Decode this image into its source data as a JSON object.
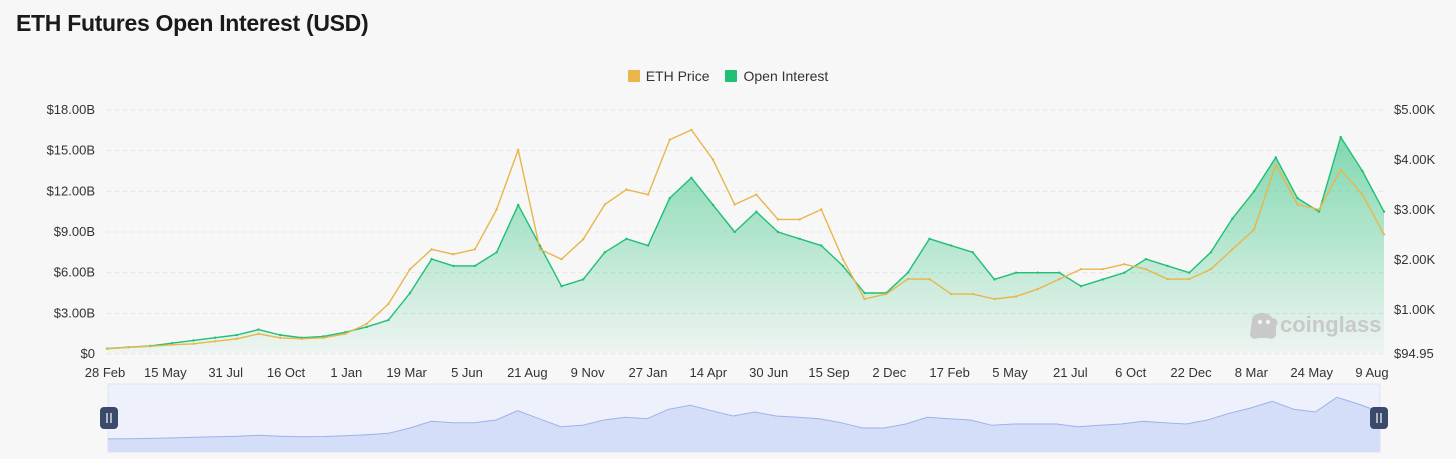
{
  "page": {
    "title": "ETH Futures Open Interest (USD)"
  },
  "colors": {
    "eth_price": "#e8b64a",
    "open_interest": "#1fbf75",
    "navigator_fill": "#d4def8",
    "navigator_line": "#9fb1ea",
    "navigator_handle": "#3b4a6b",
    "grid": "#e5e5e5"
  },
  "watermark": {
    "text": "coinglass",
    "icon": "coinglass-logo-icon"
  },
  "chart_data": {
    "type": "line",
    "title": "ETH Futures Open Interest (USD)",
    "legend": [
      "ETH Price",
      "Open Interest"
    ],
    "legend_position": "top-center",
    "grid": true,
    "x_tick_labels": [
      "28 Feb",
      "15 May",
      "31 Jul",
      "16 Oct",
      "1 Jan",
      "19 Mar",
      "5 Jun",
      "21 Aug",
      "9 Nov",
      "27 Jan",
      "14 Apr",
      "30 Jun",
      "15 Sep",
      "2 Dec",
      "17 Feb",
      "5 May",
      "21 Jul",
      "6 Oct",
      "22 Dec",
      "8 Mar",
      "24 May",
      "9 Aug"
    ],
    "y_left": {
      "label": "Open Interest",
      "ticks": [
        "$0",
        "$3.00B",
        "$6.00B",
        "$9.00B",
        "$12.00B",
        "$15.00B",
        "$18.00B"
      ],
      "range": [
        0,
        18
      ]
    },
    "y_right": {
      "label": "ETH Price",
      "ticks": [
        "$94.95",
        "$1.00K",
        "$2.00K",
        "$3.00K",
        "$4.00K",
        "$5.00K"
      ],
      "range": [
        94.95,
        5000
      ]
    },
    "series": [
      {
        "name": "Open Interest",
        "unit": "billion USD",
        "axis": "left",
        "values": [
          0.4,
          0.5,
          0.6,
          0.8,
          1.0,
          1.2,
          1.4,
          1.8,
          1.4,
          1.2,
          1.3,
          1.6,
          2.0,
          2.5,
          4.5,
          7.0,
          6.5,
          6.5,
          7.5,
          11.0,
          8.0,
          5.0,
          5.5,
          7.5,
          8.5,
          8.0,
          11.5,
          13.0,
          11.0,
          9.0,
          10.5,
          9.0,
          8.5,
          8.0,
          6.5,
          4.5,
          4.5,
          6.0,
          8.5,
          8.0,
          7.5,
          5.5,
          6.0,
          6.0,
          6.0,
          5.0,
          5.5,
          6.0,
          7.0,
          6.5,
          6.0,
          7.5,
          10.0,
          12.0,
          14.5,
          11.5,
          10.5,
          16.0,
          13.5,
          10.5
        ]
      },
      {
        "name": "ETH Price",
        "unit": "USD",
        "axis": "right",
        "values": [
          200,
          230,
          250,
          280,
          300,
          350,
          400,
          500,
          420,
          400,
          420,
          500,
          700,
          1100,
          1800,
          2200,
          2100,
          2200,
          3000,
          4200,
          2200,
          2000,
          2400,
          3100,
          3400,
          3300,
          4400,
          4600,
          4000,
          3100,
          3300,
          2800,
          2800,
          3000,
          2000,
          1200,
          1300,
          1600,
          1600,
          1300,
          1300,
          1200,
          1250,
          1400,
          1600,
          1800,
          1800,
          1900,
          1800,
          1600,
          1600,
          1800,
          2200,
          2600,
          3900,
          3100,
          3000,
          3800,
          3300,
          2500
        ]
      }
    ]
  }
}
